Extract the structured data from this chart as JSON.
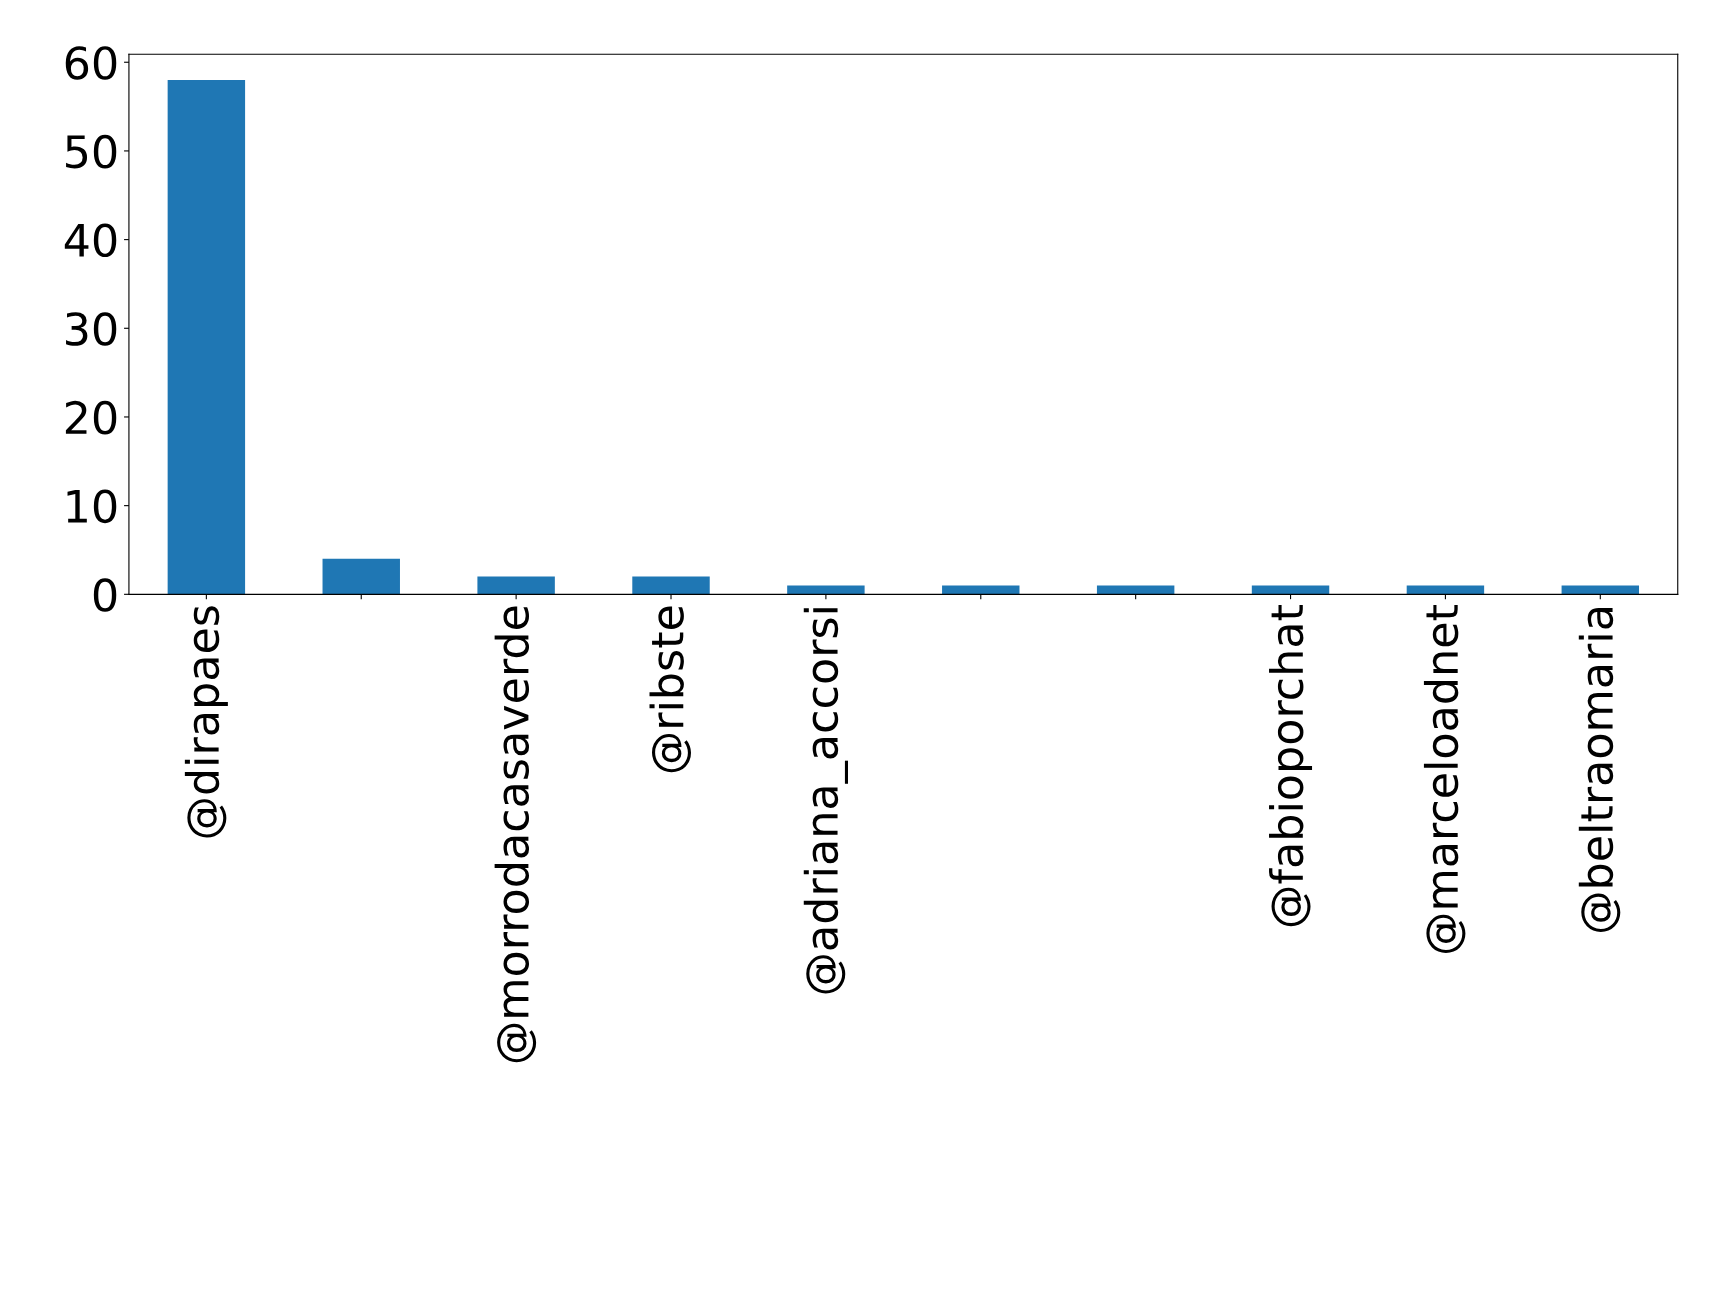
{
  "chart_data": {
    "type": "bar",
    "categories": [
      "@dirapaes",
      null,
      "@morrodacasaverde",
      "@ribste",
      "@adriana_accorsi",
      null,
      null,
      "@fabioporchat",
      "@marceloadnet",
      "@beltraomaria"
    ],
    "values": [
      58,
      4,
      2,
      2,
      1,
      1,
      1,
      1,
      1,
      1
    ],
    "color": "#1f77b4",
    "ylim": [
      0,
      60.9
    ],
    "yticks": [
      0,
      10,
      20,
      30,
      40,
      50,
      60
    ],
    "grid": false,
    "legend": false
  }
}
